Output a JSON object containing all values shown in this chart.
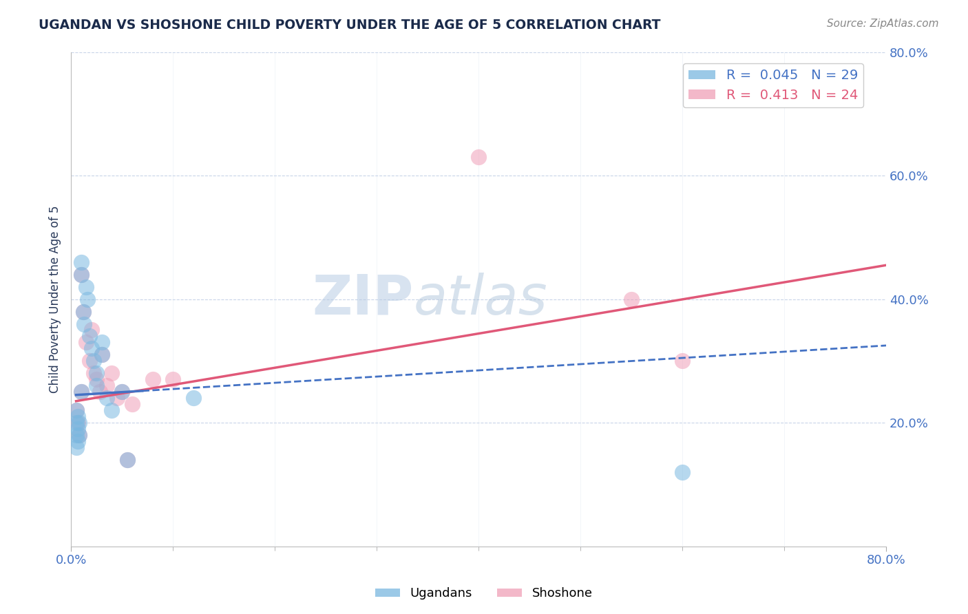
{
  "title": "UGANDAN VS SHOSHONE CHILD POVERTY UNDER THE AGE OF 5 CORRELATION CHART",
  "source_text": "Source: ZipAtlas.com",
  "ylabel": "Child Poverty Under the Age of 5",
  "xlim": [
    0,
    0.8
  ],
  "ylim": [
    0,
    0.8
  ],
  "ugandan_x": [
    0.005,
    0.005,
    0.005,
    0.005,
    0.007,
    0.007,
    0.007,
    0.008,
    0.008,
    0.01,
    0.01,
    0.01,
    0.012,
    0.013,
    0.015,
    0.016,
    0.018,
    0.02,
    0.022,
    0.025,
    0.025,
    0.03,
    0.03,
    0.035,
    0.04,
    0.05,
    0.055,
    0.12,
    0.6
  ],
  "ugandan_y": [
    0.22,
    0.2,
    0.18,
    0.16,
    0.21,
    0.19,
    0.17,
    0.2,
    0.18,
    0.46,
    0.44,
    0.25,
    0.38,
    0.36,
    0.42,
    0.4,
    0.34,
    0.32,
    0.3,
    0.28,
    0.26,
    0.33,
    0.31,
    0.24,
    0.22,
    0.25,
    0.14,
    0.24,
    0.12
  ],
  "shoshone_x": [
    0.005,
    0.007,
    0.008,
    0.01,
    0.01,
    0.012,
    0.015,
    0.018,
    0.02,
    0.022,
    0.025,
    0.028,
    0.03,
    0.035,
    0.04,
    0.045,
    0.05,
    0.055,
    0.06,
    0.08,
    0.1,
    0.4,
    0.55,
    0.6
  ],
  "shoshone_y": [
    0.22,
    0.2,
    0.18,
    0.44,
    0.25,
    0.38,
    0.33,
    0.3,
    0.35,
    0.28,
    0.27,
    0.25,
    0.31,
    0.26,
    0.28,
    0.24,
    0.25,
    0.14,
    0.23,
    0.27,
    0.27,
    0.63,
    0.4,
    0.3
  ],
  "watermark_zip": "ZIP",
  "watermark_atlas": "atlas",
  "bg_color": "#ffffff",
  "grid_color": "#c8d4e8",
  "ugandan_color": "#7ab8e0",
  "shoshone_color": "#f0a0b8",
  "trend_ugandan_color": "#4472c4",
  "trend_shoshone_color": "#e05878",
  "title_color": "#1a2a4a",
  "tick_label_color": "#4472c4",
  "R_ugandan": 0.045,
  "R_shoshone": 0.413,
  "N_ugandan": 29,
  "N_shoshone": 24,
  "trend_u_x0": 0.005,
  "trend_u_x1": 0.8,
  "trend_u_y0": 0.245,
  "trend_u_y1": 0.325,
  "trend_s_x0": 0.005,
  "trend_s_x1": 0.8,
  "trend_s_y0": 0.235,
  "trend_s_y1": 0.455
}
